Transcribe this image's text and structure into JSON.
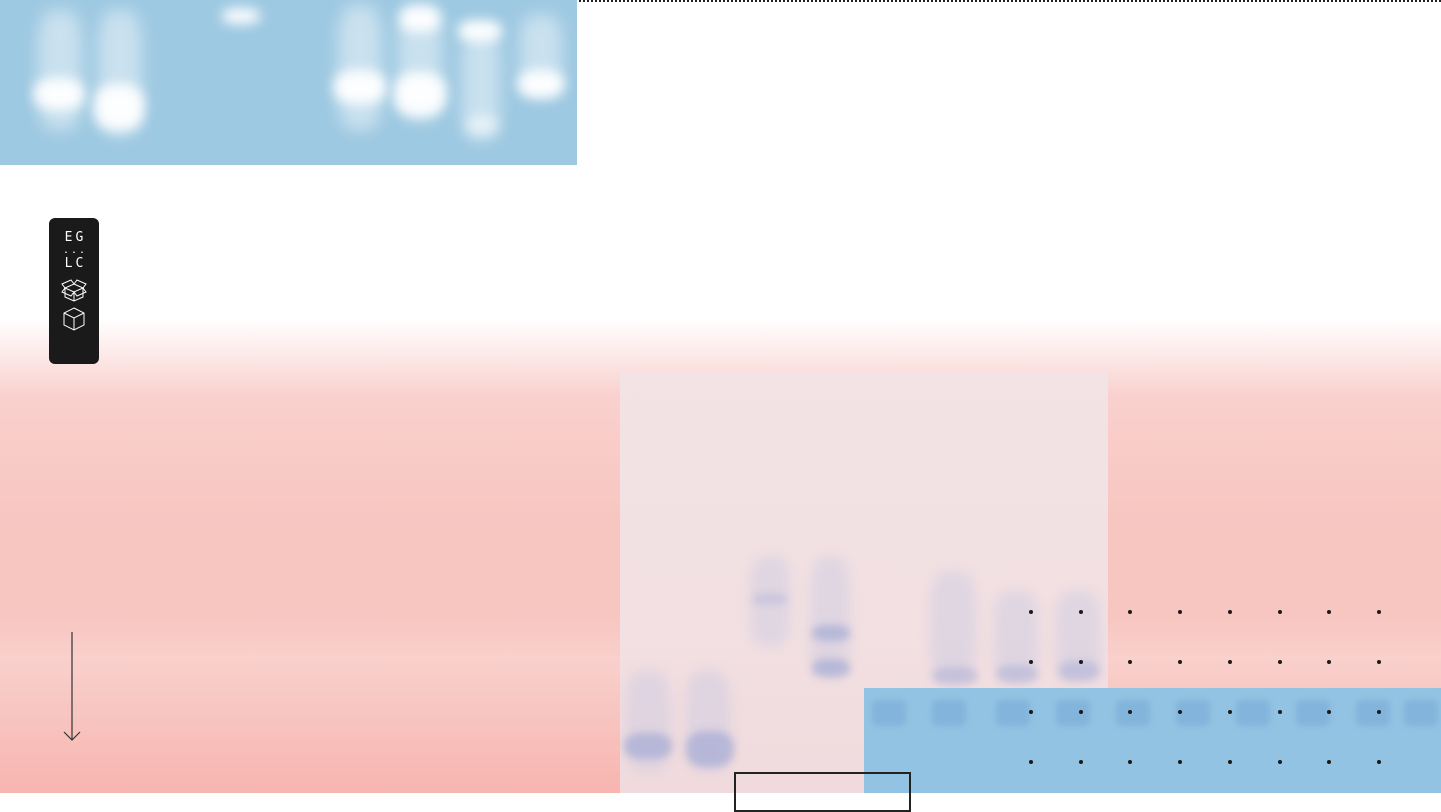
{
  "badge": {
    "line1": "EG",
    "separator": "...",
    "line2": "LC",
    "icons": [
      "open-box-icon",
      "cube-icon"
    ]
  },
  "decor": {
    "arrow": "arrow-down-icon",
    "dot_grid": {
      "rows": 4,
      "cols": 8
    }
  },
  "colors": {
    "gel_blue": "#9ec9e2",
    "panel_blue": "#93c3e2",
    "pink": "#f8c6c1",
    "badge_bg": "#1a1a1a"
  }
}
